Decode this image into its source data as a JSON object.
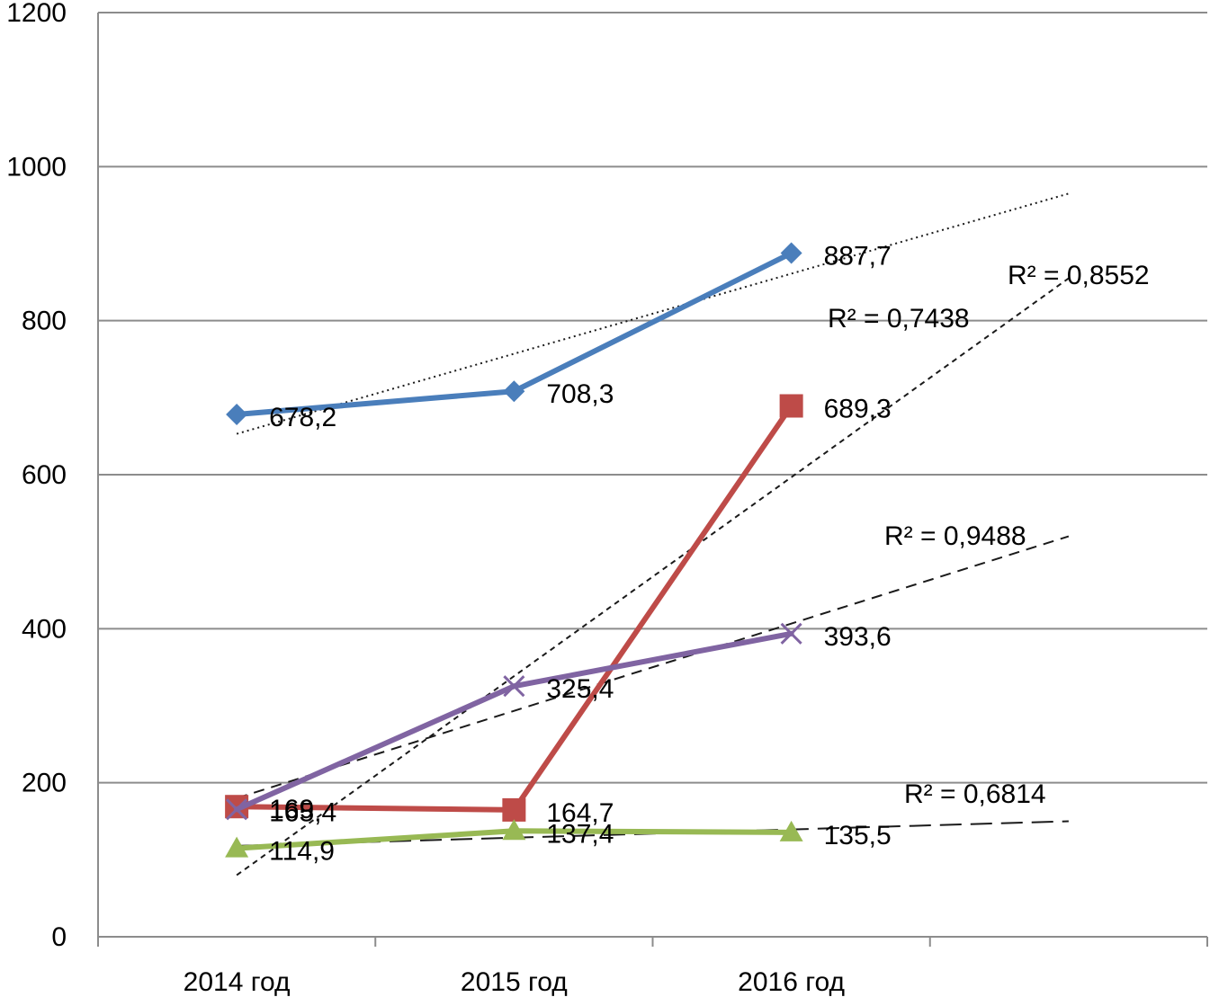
{
  "chart_data": {
    "type": "line",
    "categories": [
      "2014 год",
      "2015 год",
      "2016 год"
    ],
    "ylim": [
      0,
      1200
    ],
    "yticks": [
      0,
      200,
      400,
      600,
      800,
      1000,
      1200
    ],
    "ytick_labels": [
      "0",
      "200",
      "400",
      "600",
      "800",
      "1000",
      "1200"
    ],
    "grid": "horizontal",
    "series": [
      {
        "values": [
          678.2,
          708.3,
          887.7
        ],
        "value_labels": [
          "678,2",
          "708,3",
          "887,7"
        ],
        "color": "#4a7ebb",
        "marker": "diamond",
        "trendline": {
          "style": "dotted",
          "y_start": 653,
          "y_end": 965,
          "r2_label": ""
        }
      },
      {
        "values": [
          169,
          164.7,
          689.3
        ],
        "value_labels": [
          "169",
          "164,7",
          "689,3"
        ],
        "color": "#be4b48",
        "marker": "square",
        "trendline": {
          "style": "short-dash",
          "y_start": 80,
          "y_end": 855,
          "r2_label": "R² = 0,8552"
        }
      },
      {
        "values": [
          114.9,
          137.4,
          135.5
        ],
        "value_labels": [
          "114,9",
          "137,4",
          "135,5"
        ],
        "color": "#98b954",
        "marker": "triangle",
        "trendline": {
          "style": "long-dash",
          "y_start": 118,
          "y_end": 150,
          "r2_label": "R² = 0,6814"
        }
      },
      {
        "values": [
          165.4,
          325.4,
          393.6
        ],
        "value_labels": [
          "165,4",
          "325,4",
          "393,6"
        ],
        "color": "#8064a2",
        "marker": "x",
        "trendline": {
          "style": "dash",
          "y_start": 180,
          "y_end": 520,
          "r2_label": "R² = 0,9488"
        }
      }
    ],
    "annotations": [
      "R² = 0,7438"
    ]
  }
}
